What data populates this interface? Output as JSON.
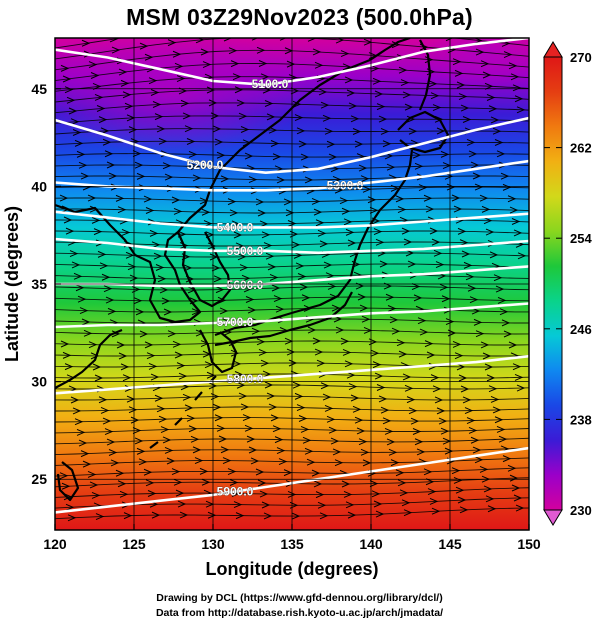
{
  "title": "MSM 03Z29Nov2023 (500.0hPa)",
  "xaxis": {
    "label": "Longitude (degrees)",
    "ticks": [
      120,
      125,
      130,
      135,
      140,
      145,
      150
    ],
    "range": [
      120,
      150
    ]
  },
  "yaxis": {
    "label": "Latitude  (degrees)",
    "ticks": [
      25,
      30,
      35,
      40,
      45
    ],
    "range": [
      22.4,
      47.6
    ]
  },
  "colorbar": {
    "ticks": [
      270,
      262,
      254,
      246,
      238,
      230
    ],
    "range": [
      230,
      270
    ],
    "stops": [
      "#d3009e",
      "#9b00c9",
      "#3b1bd6",
      "#1a47e6",
      "#0f88f0",
      "#06c9d6",
      "#0ad38a",
      "#1ec83a",
      "#8ad61e",
      "#d2d81a",
      "#f1b013",
      "#f07a10",
      "#e53e12",
      "#df1717"
    ]
  },
  "contours": [
    {
      "label": "5100.0",
      "lat": [
        47.0,
        46.6,
        46.0,
        45.4,
        45.2,
        45.6,
        46.2,
        46.9,
        47.3,
        47.6
      ]
    },
    {
      "label": "5200.0",
      "lat": [
        43.4,
        42.6,
        41.7,
        41.0,
        40.7,
        40.9,
        41.5,
        42.2,
        42.9,
        43.5
      ]
    },
    {
      "label": "5300.0",
      "lat": [
        40.2,
        40.0,
        39.9,
        39.8,
        39.8,
        39.9,
        40.2,
        40.5,
        40.9,
        41.3
      ]
    },
    {
      "label": "5400.0",
      "lat": [
        38.7,
        38.4,
        38.1,
        37.9,
        37.9,
        37.9,
        38.0,
        38.2,
        38.4,
        38.6
      ]
    },
    {
      "label": "5500.0",
      "lat": [
        37.3,
        37.1,
        36.8,
        36.7,
        36.7,
        36.6,
        36.7,
        36.8,
        37.0,
        37.2
      ]
    },
    {
      "label": "5600.0",
      "lat": [
        35.0,
        35.0,
        34.9,
        34.9,
        35.0,
        35.2,
        35.4,
        35.5,
        35.7,
        35.9
      ]
    },
    {
      "label": "5700.0",
      "lat": [
        32.8,
        32.9,
        32.9,
        33.0,
        33.1,
        33.3,
        33.5,
        33.6,
        33.8,
        34.0
      ]
    },
    {
      "label": "5800.0",
      "lat": [
        29.4,
        29.6,
        29.8,
        30.0,
        30.2,
        30.4,
        30.6,
        30.8,
        31.0,
        31.3
      ]
    },
    {
      "label": "5900.0",
      "lat": [
        23.3,
        23.6,
        23.9,
        24.2,
        24.6,
        25.0,
        25.4,
        25.8,
        26.2,
        26.6
      ]
    }
  ],
  "credits": [
    "Drawing by DCL (https://www.gfd-dennou.org/library/dcl/)",
    "Data from http://database.rish.kyoto-u.ac.jp/arch/jmadata/"
  ]
}
